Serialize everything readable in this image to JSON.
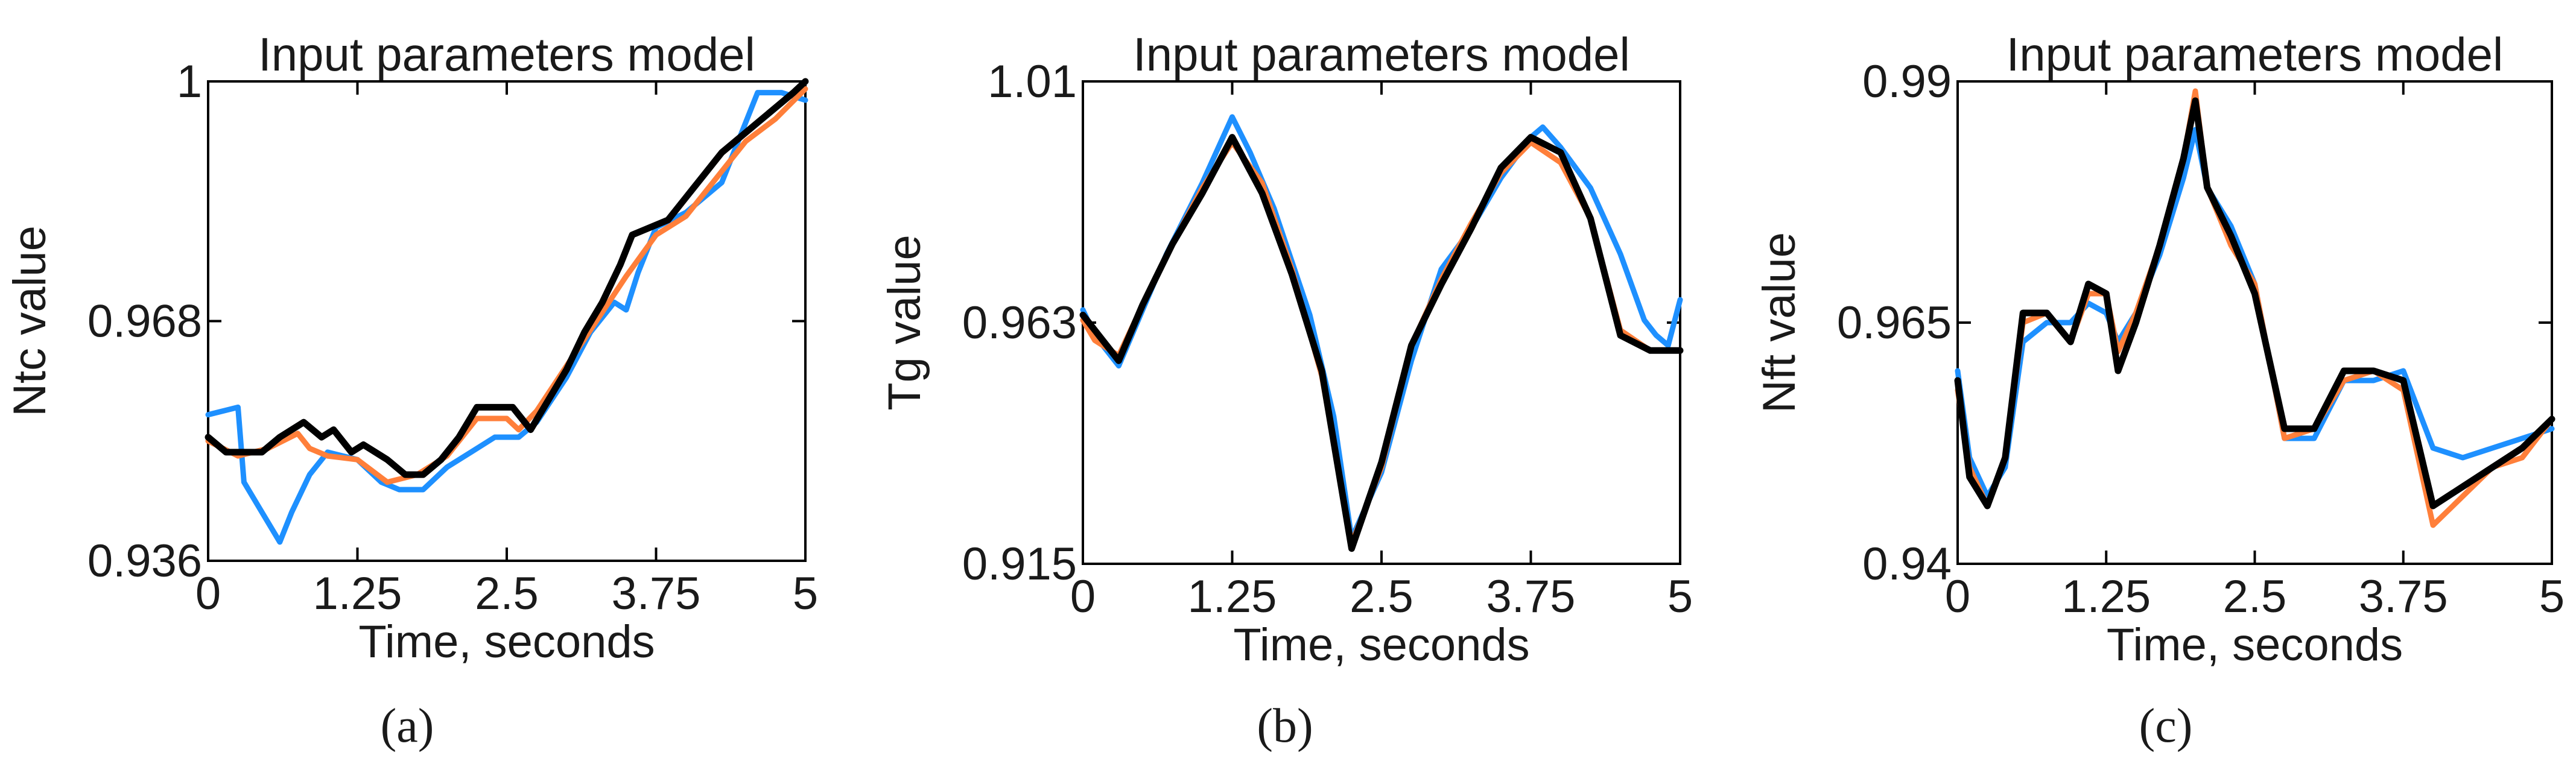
{
  "figure": {
    "panels": [
      "(a)",
      "(b)",
      "(c)"
    ]
  },
  "colors": {
    "series_1": "#1e90ff",
    "series_2": "#ff7f3a",
    "series_3": "#000000"
  },
  "chart_data": [
    {
      "type": "line",
      "title": "Input parameters model",
      "xlabel": "Time, seconds",
      "ylabel": "Ntc value",
      "caption": "(a)",
      "xlim": [
        0,
        5
      ],
      "ylim": [
        0.936,
        1.0
      ],
      "xticks": [
        "0",
        "1.25",
        "2.5",
        "3.75",
        "5"
      ],
      "yticks": [
        "0.936",
        "0.968",
        "1"
      ],
      "series": [
        {
          "color": "#1e90ff",
          "x": [
            0,
            0.25,
            0.3,
            0.45,
            0.6,
            0.7,
            0.85,
            1.0,
            1.25,
            1.45,
            1.6,
            1.8,
            2.0,
            2.2,
            2.4,
            2.6,
            2.75,
            3.0,
            3.2,
            3.4,
            3.5,
            3.6,
            3.65,
            3.75,
            4.0,
            4.3,
            4.6,
            4.8,
            5.0
          ],
          "y": [
            0.9555,
            0.9565,
            0.9465,
            0.9425,
            0.9385,
            0.9425,
            0.9475,
            0.9505,
            0.9495,
            0.9465,
            0.9455,
            0.9455,
            0.9485,
            0.9505,
            0.9525,
            0.9525,
            0.9545,
            0.9605,
            0.9665,
            0.9705,
            0.9695,
            0.9745,
            0.9765,
            0.9805,
            0.9825,
            0.9865,
            0.9985,
            0.9985,
            0.9975
          ]
        },
        {
          "color": "#ff7f3a",
          "x": [
            0,
            0.25,
            0.5,
            0.75,
            0.85,
            1.0,
            1.25,
            1.5,
            1.75,
            2.0,
            2.25,
            2.5,
            2.6,
            2.75,
            3.0,
            3.25,
            3.5,
            3.75,
            4.0,
            4.25,
            4.5,
            4.75,
            5.0
          ],
          "y": [
            0.952,
            0.95,
            0.951,
            0.953,
            0.951,
            0.95,
            0.9495,
            0.9465,
            0.9475,
            0.95,
            0.955,
            0.955,
            0.9535,
            0.956,
            0.962,
            0.968,
            0.974,
            0.9795,
            0.982,
            0.987,
            0.992,
            0.995,
            0.999
          ]
        },
        {
          "color": "#000000",
          "x": [
            0,
            0.15,
            0.45,
            0.6,
            0.8,
            0.95,
            1.05,
            1.2,
            1.3,
            1.5,
            1.65,
            1.8,
            1.95,
            2.1,
            2.25,
            2.4,
            2.55,
            2.7,
            2.85,
            3.0,
            3.15,
            3.3,
            3.45,
            3.55,
            3.7,
            3.85,
            4.0,
            4.15,
            4.3,
            4.45,
            4.6,
            4.75,
            4.9,
            5.0
          ],
          "y": [
            0.9525,
            0.9505,
            0.9505,
            0.9525,
            0.9545,
            0.9525,
            0.9535,
            0.9505,
            0.9515,
            0.9495,
            0.9475,
            0.9475,
            0.9495,
            0.9525,
            0.9565,
            0.9565,
            0.9565,
            0.9535,
            0.9575,
            0.9615,
            0.9665,
            0.9705,
            0.9755,
            0.9795,
            0.9805,
            0.9815,
            0.9845,
            0.9875,
            0.9905,
            0.9925,
            0.9945,
            0.9965,
            0.9985,
            1.0
          ]
        }
      ]
    },
    {
      "type": "line",
      "title": "Input parameters model",
      "xlabel": "Time, seconds",
      "ylabel": "Tg value",
      "caption": "(b)",
      "xlim": [
        0,
        5
      ],
      "ylim": [
        0.915,
        1.01
      ],
      "xticks": [
        "0",
        "1.25",
        "2.5",
        "3.75",
        "5"
      ],
      "yticks": [
        "0.915",
        "0.963",
        "1.01"
      ],
      "series": [
        {
          "color": "#1e90ff",
          "x": [
            0,
            0.1,
            0.3,
            0.5,
            0.7,
            1.0,
            1.25,
            1.4,
            1.6,
            1.9,
            2.1,
            2.25,
            2.5,
            2.75,
            3.0,
            3.25,
            3.5,
            3.75,
            3.85,
            4.0,
            4.25,
            4.5,
            4.7,
            4.8,
            4.9,
            5.0
          ],
          "y": [
            0.965,
            0.96,
            0.954,
            0.965,
            0.976,
            0.99,
            1.003,
            0.996,
            0.985,
            0.964,
            0.944,
            0.92,
            0.933,
            0.955,
            0.973,
            0.981,
            0.991,
            0.999,
            1.001,
            0.997,
            0.989,
            0.976,
            0.963,
            0.96,
            0.958,
            0.967
          ]
        },
        {
          "color": "#ff7f3a",
          "x": [
            0,
            0.1,
            0.3,
            0.5,
            0.75,
            1.0,
            1.25,
            1.5,
            1.75,
            2.0,
            2.25,
            2.5,
            2.75,
            3.0,
            3.25,
            3.5,
            3.75,
            4.0,
            4.25,
            4.5,
            4.75,
            5.0
          ],
          "y": [
            0.963,
            0.959,
            0.956,
            0.966,
            0.978,
            0.989,
            0.998,
            0.99,
            0.973,
            0.952,
            0.919,
            0.934,
            0.958,
            0.971,
            0.982,
            0.992,
            0.998,
            0.994,
            0.983,
            0.961,
            0.957,
            0.957
          ]
        },
        {
          "color": "#000000",
          "x": [
            0,
            0.3,
            0.5,
            0.75,
            1.0,
            1.25,
            1.5,
            1.75,
            2.0,
            2.25,
            2.5,
            2.75,
            3.0,
            3.25,
            3.5,
            3.75,
            4.0,
            4.25,
            4.5,
            4.75,
            5.0
          ],
          "y": [
            0.964,
            0.955,
            0.966,
            0.978,
            0.988,
            0.999,
            0.988,
            0.972,
            0.953,
            0.918,
            0.935,
            0.958,
            0.97,
            0.981,
            0.993,
            0.999,
            0.996,
            0.983,
            0.96,
            0.957,
            0.957
          ]
        }
      ]
    },
    {
      "type": "line",
      "title": "Input parameters model",
      "xlabel": "Time, seconds",
      "ylabel": "Nft value",
      "caption": "(c)",
      "xlim": [
        0,
        5
      ],
      "ylim": [
        0.94,
        0.99
      ],
      "xticks": [
        "0",
        "1.25",
        "2.5",
        "3.75",
        "5"
      ],
      "yticks": [
        "0.94",
        "0.965",
        "0.99"
      ],
      "series": [
        {
          "color": "#1e90ff",
          "x": [
            0,
            0.1,
            0.25,
            0.4,
            0.55,
            0.75,
            0.95,
            1.1,
            1.25,
            1.35,
            1.5,
            1.7,
            1.9,
            2.0,
            2.1,
            2.3,
            2.5,
            2.75,
            3.0,
            3.25,
            3.5,
            3.75,
            4.0,
            4.25,
            4.5,
            4.75,
            5.0
          ],
          "y": [
            0.96,
            0.951,
            0.947,
            0.95,
            0.963,
            0.965,
            0.965,
            0.967,
            0.966,
            0.963,
            0.966,
            0.972,
            0.98,
            0.985,
            0.979,
            0.975,
            0.969,
            0.953,
            0.953,
            0.959,
            0.959,
            0.96,
            0.952,
            0.951,
            0.952,
            0.953,
            0.954
          ]
        },
        {
          "color": "#ff7f3a",
          "x": [
            0,
            0.1,
            0.25,
            0.4,
            0.55,
            0.75,
            0.95,
            1.1,
            1.25,
            1.35,
            1.5,
            1.7,
            1.9,
            2.0,
            2.1,
            2.3,
            2.5,
            2.75,
            3.0,
            3.25,
            3.5,
            3.75,
            4.0,
            4.25,
            4.5,
            4.75,
            5.0
          ],
          "y": [
            0.958,
            0.95,
            0.946,
            0.951,
            0.965,
            0.966,
            0.963,
            0.968,
            0.968,
            0.962,
            0.966,
            0.973,
            0.982,
            0.989,
            0.979,
            0.973,
            0.969,
            0.953,
            0.954,
            0.959,
            0.96,
            0.958,
            0.944,
            0.947,
            0.95,
            0.951,
            0.955
          ]
        },
        {
          "color": "#000000",
          "x": [
            0,
            0.1,
            0.25,
            0.4,
            0.55,
            0.75,
            0.95,
            1.1,
            1.25,
            1.35,
            1.5,
            1.7,
            1.9,
            2.0,
            2.1,
            2.3,
            2.5,
            2.75,
            3.0,
            3.25,
            3.5,
            3.75,
            4.0,
            4.25,
            4.5,
            4.75,
            5.0
          ],
          "y": [
            0.959,
            0.949,
            0.946,
            0.951,
            0.966,
            0.966,
            0.963,
            0.969,
            0.968,
            0.96,
            0.965,
            0.973,
            0.982,
            0.988,
            0.979,
            0.974,
            0.968,
            0.954,
            0.954,
            0.96,
            0.96,
            0.959,
            0.946,
            0.948,
            0.95,
            0.952,
            0.955
          ]
        }
      ]
    }
  ]
}
